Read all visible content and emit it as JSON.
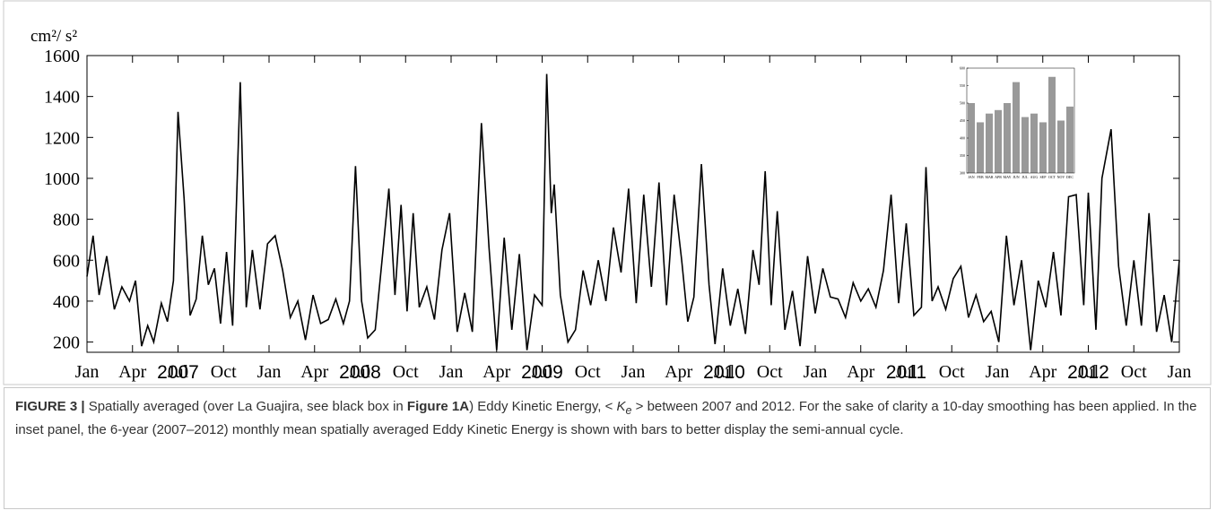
{
  "chart_data": [
    {
      "type": "line",
      "y_label": "cm²/ s²",
      "color": "#000000",
      "x": [
        0,
        0.4,
        0.8,
        1.3,
        1.8,
        2.3,
        2.8,
        3.2,
        3.6,
        4.0,
        4.4,
        4.9,
        5.3,
        5.7,
        6.0,
        6.4,
        6.8,
        7.2,
        7.6,
        8.0,
        8.4,
        8.8,
        9.2,
        9.6,
        10.1,
        10.5,
        10.9,
        11.4,
        11.9,
        12.4,
        12.9,
        13.4,
        13.9,
        14.4,
        14.9,
        15.4,
        15.9,
        16.4,
        16.9,
        17.3,
        17.7,
        18.1,
        18.5,
        19.0,
        19.5,
        19.9,
        20.3,
        20.7,
        21.1,
        21.5,
        21.9,
        22.4,
        22.9,
        23.4,
        23.9,
        24.4,
        24.9,
        25.4,
        26.0,
        26.5,
        27.0,
        27.5,
        28.0,
        28.5,
        29.0,
        29.5,
        30.0,
        30.3,
        30.6,
        30.8,
        31.2,
        31.7,
        32.2,
        32.7,
        33.2,
        33.7,
        34.2,
        34.7,
        35.2,
        35.7,
        36.2,
        36.7,
        37.2,
        37.7,
        38.2,
        38.7,
        39.2,
        39.6,
        40.0,
        40.5,
        41.0,
        41.4,
        41.9,
        42.4,
        42.9,
        43.4,
        43.9,
        44.3,
        44.7,
        45.1,
        45.5,
        46.0,
        46.5,
        47.0,
        47.5,
        48.0,
        48.5,
        49.0,
        49.5,
        50.0,
        50.5,
        51.0,
        51.5,
        52.0,
        52.5,
        53.0,
        53.5,
        54.0,
        54.5,
        55.0,
        55.3,
        55.7,
        56.1,
        56.6,
        57.1,
        57.6,
        58.1,
        58.6,
        59.1,
        59.6,
        60.1,
        60.6,
        61.1,
        61.6,
        62.2,
        62.7,
        63.2,
        63.7,
        64.2,
        64.7,
        65.2,
        65.7,
        66.0,
        66.5,
        66.9,
        67.5,
        68.0,
        68.5,
        69.0,
        69.5,
        70.0,
        70.5,
        71.0,
        71.5,
        72.0
      ],
      "values": [
        520,
        720,
        430,
        620,
        360,
        470,
        400,
        500,
        180,
        280,
        200,
        390,
        300,
        500,
        1325,
        900,
        330,
        410,
        720,
        480,
        560,
        290,
        640,
        280,
        1470,
        370,
        650,
        360,
        680,
        720,
        550,
        320,
        400,
        210,
        430,
        290,
        310,
        410,
        290,
        400,
        1060,
        400,
        220,
        260,
        640,
        950,
        430,
        870,
        350,
        830,
        370,
        470,
        310,
        650,
        830,
        250,
        440,
        250,
        1270,
        660,
        160,
        710,
        260,
        630,
        160,
        430,
        380,
        1510,
        830,
        970,
        430,
        200,
        260,
        550,
        380,
        600,
        400,
        760,
        540,
        950,
        390,
        920,
        470,
        980,
        380,
        920,
        600,
        300,
        420,
        1070,
        480,
        190,
        560,
        280,
        460,
        240,
        650,
        480,
        1035,
        380,
        840,
        260,
        450,
        180,
        620,
        340,
        560,
        420,
        410,
        320,
        490,
        400,
        460,
        370,
        550,
        920,
        390,
        780,
        330,
        370,
        1055,
        400,
        470,
        360,
        510,
        570,
        320,
        430,
        300,
        350,
        200,
        720,
        380,
        600,
        160,
        500,
        370,
        640,
        330,
        910,
        920,
        380,
        930,
        260,
        1000,
        1240,
        570,
        280,
        600,
        280,
        830,
        250,
        430,
        200,
        600
      ],
      "xlim": [
        0,
        72
      ],
      "ylim": [
        150,
        1600
      ],
      "yticks": [
        200,
        400,
        600,
        800,
        1000,
        1200,
        1400,
        1600
      ],
      "xticks": [
        {
          "value": 0,
          "label": "Jan"
        },
        {
          "value": 3,
          "label": "Apr"
        },
        {
          "value": 6,
          "label": "Jul"
        },
        {
          "value": 9,
          "label": "Oct"
        },
        {
          "value": 12,
          "label": "Jan"
        },
        {
          "value": 15,
          "label": "Apr"
        },
        {
          "value": 18,
          "label": "Jul"
        },
        {
          "value": 21,
          "label": "Oct"
        },
        {
          "value": 24,
          "label": "Jan"
        },
        {
          "value": 27,
          "label": "Apr"
        },
        {
          "value": 30,
          "label": "Jul"
        },
        {
          "value": 33,
          "label": "Oct"
        },
        {
          "value": 36,
          "label": "Jan"
        },
        {
          "value": 39,
          "label": "Apr"
        },
        {
          "value": 42,
          "label": "Jul"
        },
        {
          "value": 45,
          "label": "Oct"
        },
        {
          "value": 48,
          "label": "Jan"
        },
        {
          "value": 51,
          "label": "Apr"
        },
        {
          "value": 54,
          "label": "Jul"
        },
        {
          "value": 57,
          "label": "Oct"
        },
        {
          "value": 60,
          "label": "Jan"
        },
        {
          "value": 63,
          "label": "Apr"
        },
        {
          "value": 66,
          "label": "Jul"
        },
        {
          "value": 69,
          "label": "Oct"
        },
        {
          "value": 72,
          "label": "Jan"
        }
      ],
      "year_labels": [
        "2007",
        "2008",
        "2009",
        "2010",
        "2011",
        "2012"
      ]
    },
    {
      "type": "bar",
      "color": "#999999",
      "categories": [
        "JAN",
        "FEB",
        "MAR",
        "APR",
        "MAY",
        "JUN",
        "JUL",
        "AUG",
        "SEP",
        "OCT",
        "NOV",
        "DEC"
      ],
      "values": [
        500,
        445,
        470,
        480,
        500,
        560,
        460,
        470,
        445,
        575,
        450,
        490
      ],
      "ylim": [
        300,
        600
      ],
      "yticks": [
        300,
        350,
        400,
        450,
        500,
        550,
        600
      ]
    }
  ],
  "caption": {
    "label": "FIGURE 3 |",
    "text1": " Spatially averaged (over La Guajira, see black box in ",
    "ref": "Figure 1A",
    "text2": ") Eddy Kinetic Energy, < ",
    "symbol": "K",
    "subscript": "e",
    "text3": " > between 2007 and 2012. For the sake of clarity a 10-day smoothing has been applied. In the inset panel, the 6-year (2007–2012) monthly mean spatially averaged Eddy Kinetic Energy is shown with bars to better display the semi-annual cycle."
  }
}
